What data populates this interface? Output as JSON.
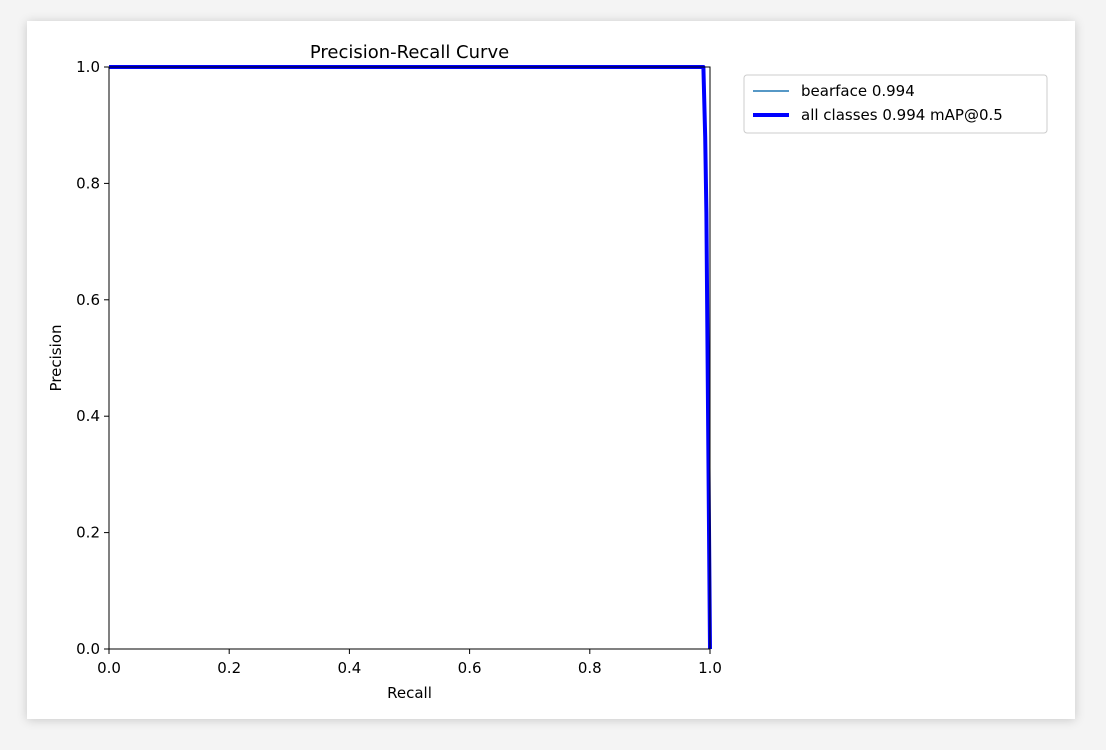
{
  "chart_data": {
    "type": "line",
    "title": "Precision-Recall Curve",
    "xlabel": "Recall",
    "ylabel": "Precision",
    "xlim": [
      0.0,
      1.0
    ],
    "ylim": [
      0.0,
      1.0
    ],
    "xticks": [
      0.0,
      0.2,
      0.4,
      0.6,
      0.8,
      1.0
    ],
    "yticks": [
      0.0,
      0.2,
      0.4,
      0.6,
      0.8,
      1.0
    ],
    "xtick_labels": [
      "0.0",
      "0.2",
      "0.4",
      "0.6",
      "0.8",
      "1.0"
    ],
    "ytick_labels": [
      "0.0",
      "0.2",
      "0.4",
      "0.6",
      "0.8",
      "1.0"
    ],
    "grid": false,
    "legend_placement": "outside-upper-right",
    "series": [
      {
        "name": "bearface 0.994",
        "color": "#1f77b4",
        "line_width": "thin",
        "x": [
          0.0,
          0.989,
          0.992,
          0.994,
          1.0
        ],
        "y": [
          1.0,
          1.0,
          0.88,
          0.75,
          0.0
        ]
      },
      {
        "name": "all classes 0.994 mAP@0.5",
        "color": "#0000ff",
        "line_width": "thick",
        "x": [
          0.0,
          0.989,
          0.992,
          0.994,
          1.0
        ],
        "y": [
          1.0,
          1.0,
          0.88,
          0.75,
          0.0
        ]
      }
    ]
  }
}
